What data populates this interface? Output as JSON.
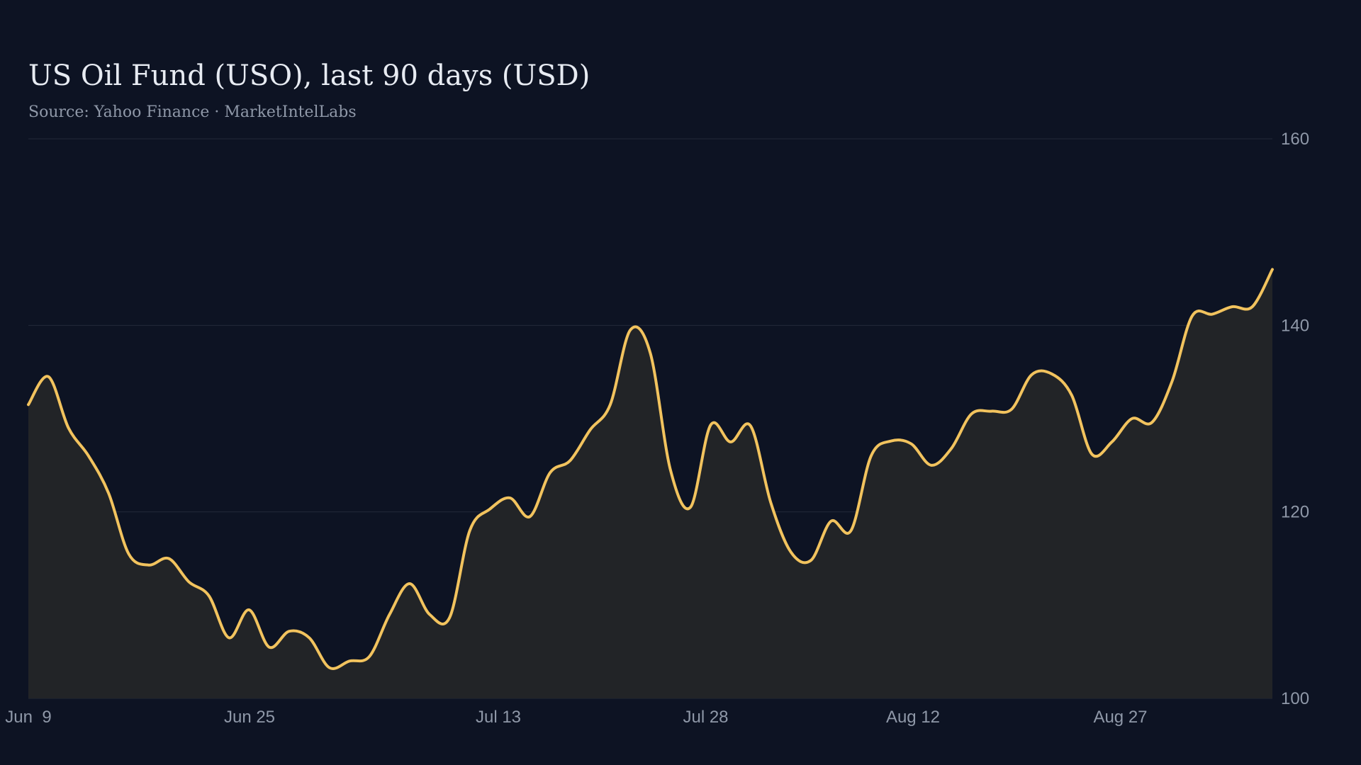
{
  "chart_data": {
    "type": "area",
    "title": "US Oil Fund (USO), last 90 days (USD)",
    "subtitle": "Source: Yahoo Finance · MarketIntelLabs",
    "xlabel": "",
    "ylabel": "",
    "ylim": [
      100,
      160
    ],
    "y_ticks": [
      100,
      120,
      140,
      160
    ],
    "y_tick_labels": [
      "100",
      "120",
      "140",
      "160"
    ],
    "y_axis_side": "right",
    "grid": true,
    "start_date": "2024-06-09",
    "x_tick_labels": [
      {
        "day": 0,
        "label": "Jun  9"
      },
      {
        "day": 16,
        "label": "Jun 25"
      },
      {
        "day": 34,
        "label": "Jul 13"
      },
      {
        "day": 49,
        "label": "Jul 28"
      },
      {
        "day": 64,
        "label": "Aug 12"
      },
      {
        "day": 79,
        "label": "Aug 27"
      }
    ],
    "colors": {
      "background": "#0d1323",
      "line": "#f2c35e",
      "area_fill": "#222427",
      "grid": "#232a3a",
      "text": "#8f98a8"
    },
    "series": [
      {
        "values": [
          131.5,
          134.5,
          129.0,
          126.0,
          122.0,
          115.5,
          114.3,
          115.0,
          112.5,
          111.0,
          106.5,
          109.5,
          105.5,
          107.2,
          106.5,
          103.3,
          104.0,
          104.5,
          109.0,
          112.3,
          109.0,
          108.7,
          118.0,
          120.3,
          121.5,
          119.5,
          124.2,
          125.5,
          128.8,
          131.5,
          139.5,
          137.0,
          124.5,
          120.5,
          129.3,
          127.5,
          129.2,
          121.0,
          115.7,
          114.8,
          119.0,
          118.0,
          126.0,
          127.6,
          127.3,
          125.0,
          126.8,
          130.5,
          130.8,
          131.0,
          134.7,
          134.8,
          132.5,
          126.2,
          127.5,
          130.0,
          129.6,
          134.0,
          141.0,
          141.2,
          142.0,
          142.0,
          146.0
        ]
      }
    ]
  }
}
